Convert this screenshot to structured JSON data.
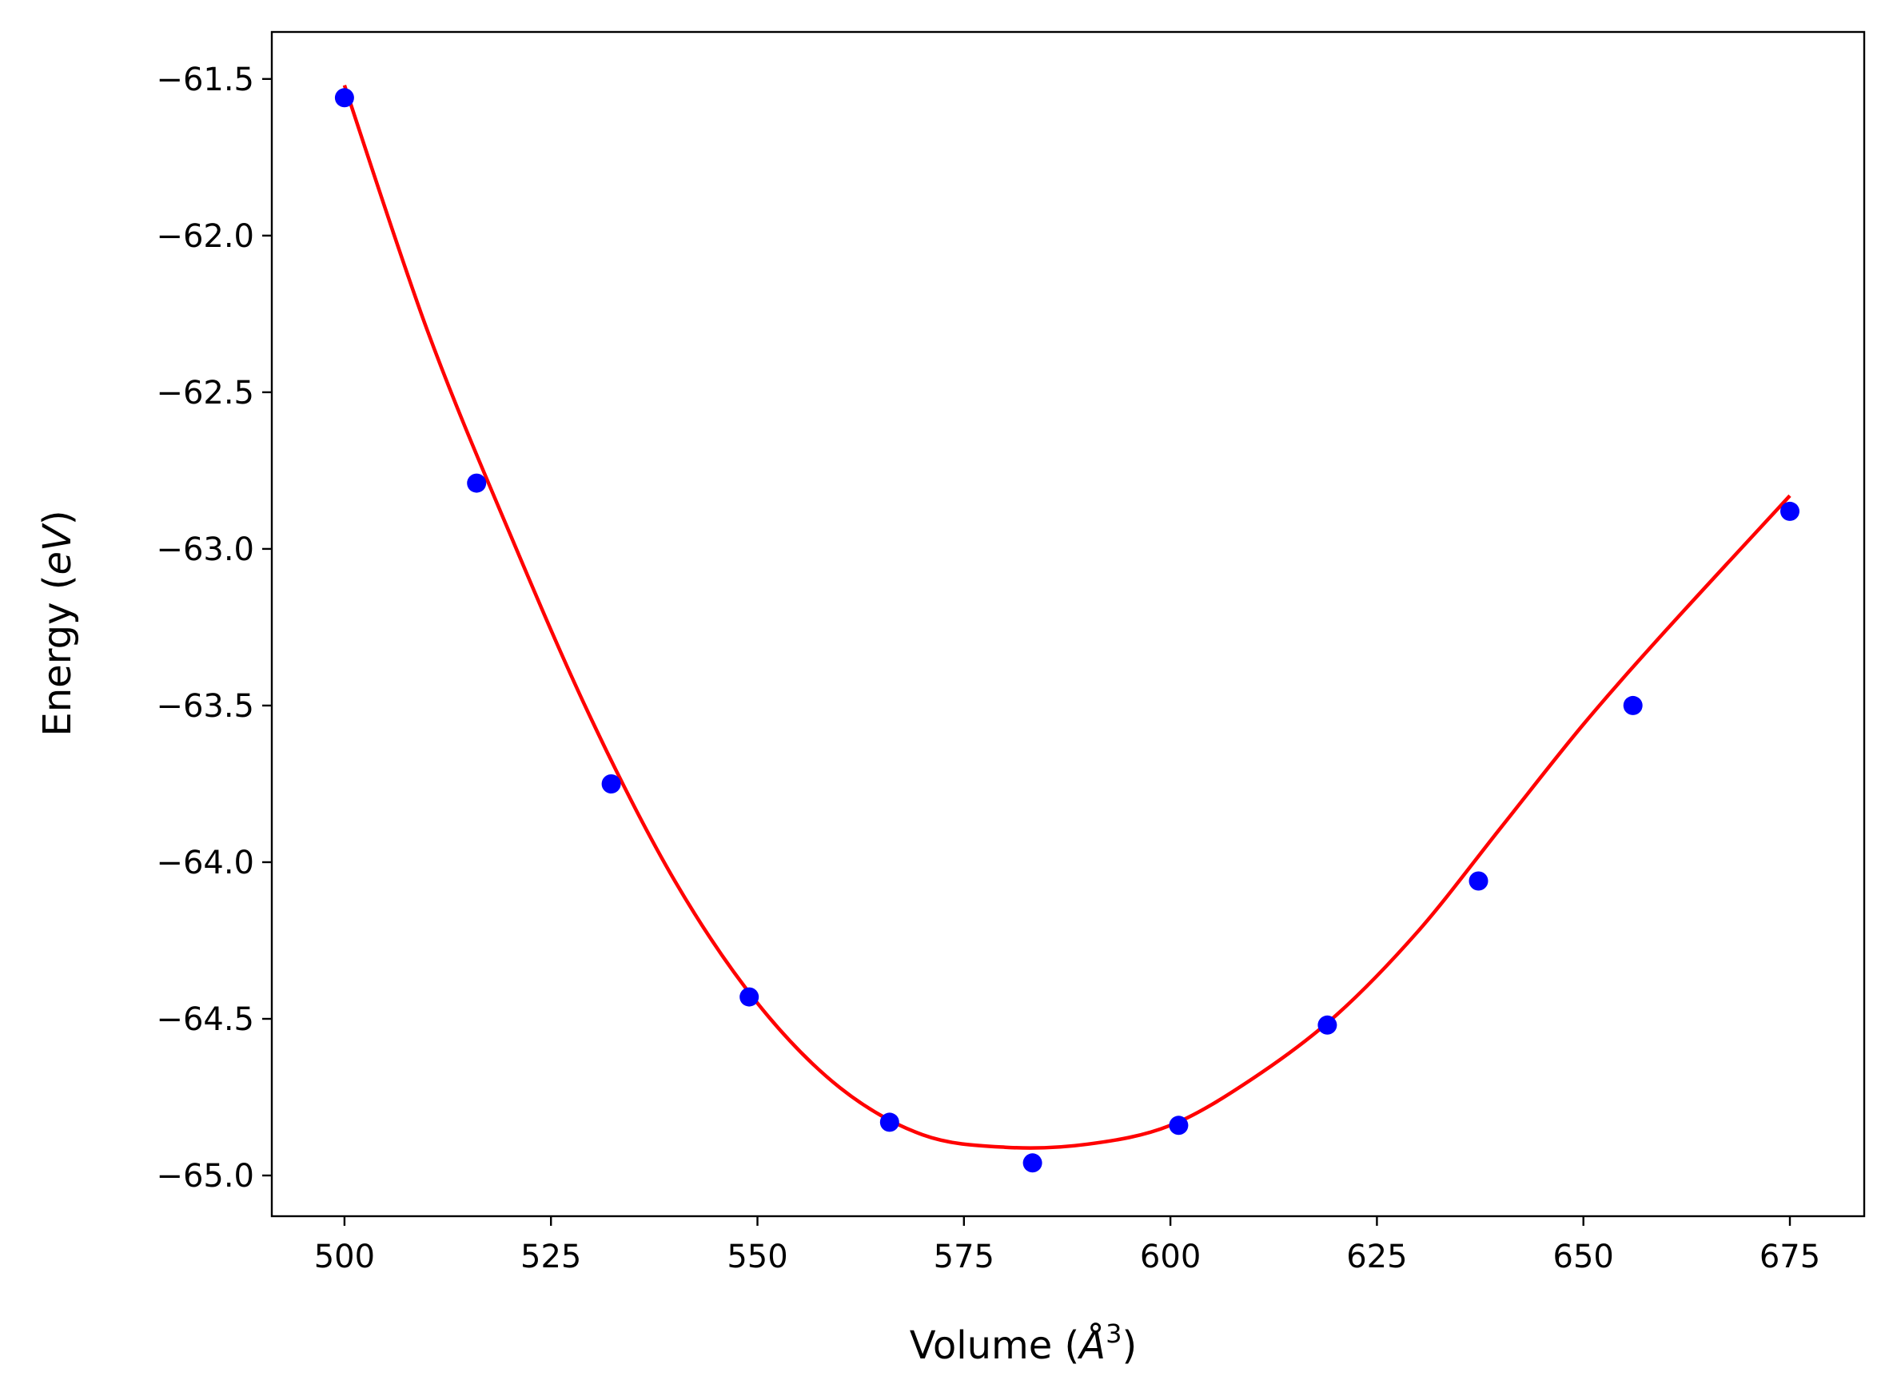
{
  "chart_data": {
    "type": "scatter",
    "title": "",
    "xlabel": "Volume",
    "xlabel_unit_base": "Å",
    "xlabel_unit_exp": "3",
    "ylabel": "Energy",
    "ylabel_unit": "eV",
    "xlim": [
      491.2,
      684.0
    ],
    "ylim": [
      -65.13,
      -61.35
    ],
    "xticks": [
      500,
      525,
      550,
      575,
      600,
      625,
      650,
      675
    ],
    "xtick_labels": [
      "500",
      "525",
      "550",
      "575",
      "600",
      "625",
      "650",
      "675"
    ],
    "yticks": [
      -61.5,
      -62.0,
      -62.5,
      -63.0,
      -63.5,
      -64.0,
      -64.5,
      -65.0
    ],
    "ytick_labels": [
      "−61.5",
      "−62.0",
      "−62.5",
      "−63.0",
      "−63.5",
      "−64.0",
      "−64.5",
      "−65.0"
    ],
    "grid": false,
    "series": [
      {
        "kind": "points",
        "color": "#0000ff",
        "x": [
          500.0,
          516.0,
          532.3,
          549.0,
          566.0,
          583.3,
          601.0,
          619.0,
          637.3,
          656.0,
          675.0
        ],
        "y": [
          -61.56,
          -62.79,
          -63.75,
          -64.43,
          -64.83,
          -64.96,
          -64.84,
          -64.52,
          -64.06,
          -63.5,
          -62.88
        ]
      },
      {
        "kind": "fit-curve",
        "color": "#ff0000",
        "fit_min": [
          584.0,
          -64.915
        ],
        "x": [
          500,
          510,
          520,
          530,
          540,
          550,
          560,
          570,
          580,
          590,
          600,
          610,
          620,
          630,
          640,
          650,
          660,
          675
        ],
        "y": [
          -61.52,
          -62.3,
          -62.95,
          -63.55,
          -64.06,
          -64.45,
          -64.72,
          -64.87,
          -64.91,
          -64.9,
          -64.84,
          -64.69,
          -64.49,
          -64.22,
          -63.89,
          -63.56,
          -63.26,
          -62.83
        ]
      }
    ]
  }
}
